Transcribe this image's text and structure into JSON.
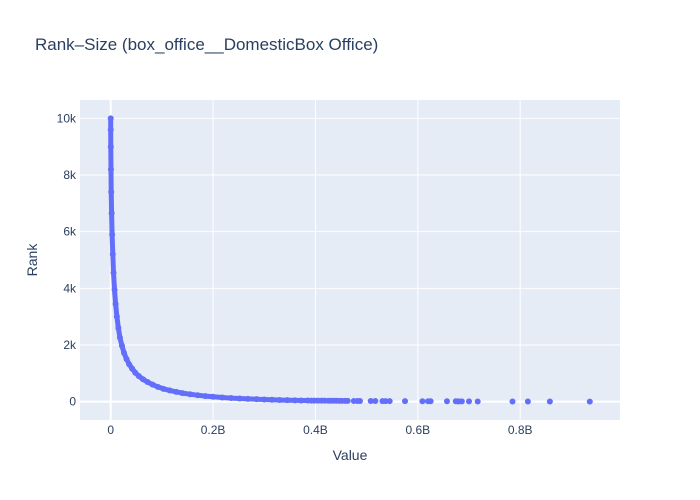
{
  "chart_data": {
    "type": "scatter",
    "title": "Rank–Size (box_office__DomesticBox Office)",
    "xlabel": "Value",
    "ylabel": "Rank",
    "xlim": [
      -60000000,
      995000000
    ],
    "ylim": [
      -650,
      10650
    ],
    "x_ticks": [
      {
        "value": 0,
        "label": "0"
      },
      {
        "value": 200000000,
        "label": "0.2B"
      },
      {
        "value": 400000000,
        "label": "0.4B"
      },
      {
        "value": 600000000,
        "label": "0.6B"
      },
      {
        "value": 800000000,
        "label": "0.8B"
      }
    ],
    "y_ticks": [
      {
        "value": 0,
        "label": "0"
      },
      {
        "value": 2000,
        "label": "2k"
      },
      {
        "value": 4000,
        "label": "4k"
      },
      {
        "value": 6000,
        "label": "6k"
      },
      {
        "value": 8000,
        "label": "8k"
      },
      {
        "value": 10000,
        "label": "10k"
      }
    ],
    "grid": true,
    "marker_color": "#636efa",
    "background_color": "#e5ecf6",
    "series": [
      {
        "x": [
          936000000,
          858000000,
          815000000,
          785000000,
          717000000,
          700000000,
          686000000,
          680000000,
          678000000,
          674000000,
          657000000,
          625000000,
          620000000,
          609000000,
          575000000,
          545000000,
          537000000,
          531000000,
          517000000,
          508000000,
          487000000,
          482000000,
          475000000,
          463000000,
          458000000,
          452000000,
          447000000,
          441000000,
          436000000,
          430000000,
          425000000,
          418000000,
          412000000,
          405000000,
          398000000,
          392000000,
          385000000,
          372000000,
          360000000,
          345000000,
          330000000,
          315000000,
          300000000,
          285000000,
          268000000,
          252000000,
          235000000,
          218000000,
          200000000,
          185000000,
          170000000,
          155000000,
          140000000,
          128000000,
          115000000,
          103000000,
          92000000,
          82000000,
          72000000,
          63000000,
          55000000,
          48000000,
          42000000,
          36000000,
          31000000,
          26000000,
          22000000,
          18000000,
          15000000,
          12000000,
          9500000,
          7500000,
          5500000,
          4000000,
          2800000,
          1800000,
          1000000,
          500000,
          200000,
          50000,
          10000
        ],
        "y": [
          1,
          2,
          3,
          4,
          5,
          6,
          7,
          8,
          9,
          10,
          11,
          12,
          13,
          14,
          15,
          16,
          17,
          18,
          19,
          20,
          21,
          22,
          23,
          24,
          25,
          26,
          27,
          28,
          29,
          30,
          31,
          32,
          33,
          34,
          35,
          36,
          37,
          40,
          45,
          50,
          58,
          66,
          75,
          85,
          96,
          110,
          125,
          145,
          170,
          195,
          225,
          260,
          300,
          345,
          395,
          450,
          520,
          600,
          690,
          790,
          900,
          1020,
          1160,
          1320,
          1500,
          1720,
          1970,
          2260,
          2600,
          3000,
          3450,
          3950,
          4550,
          5200,
          5900,
          6650,
          7400,
          8200,
          9000,
          9600,
          10000
        ]
      }
    ]
  }
}
